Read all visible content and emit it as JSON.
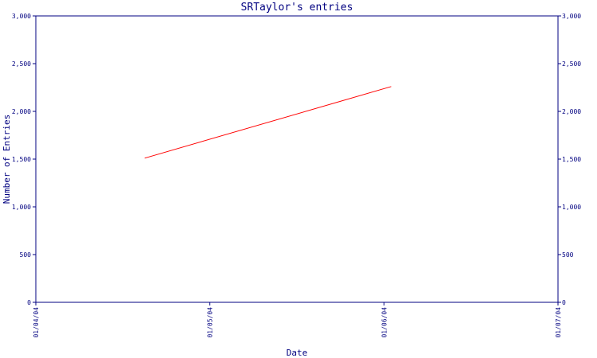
{
  "chart_data": {
    "type": "line",
    "title": "SRTaylor's entries",
    "xlabel": "Date",
    "ylabel": "Number of Entries",
    "x_ticks": [
      "01/04/04",
      "01/05/04",
      "01/06/04",
      "01/07/04"
    ],
    "xlim": [
      "2004-01-04",
      "2004-01-07"
    ],
    "ylim": [
      0,
      3000
    ],
    "y_ticks": [
      "0",
      "500",
      "1,000",
      "1,500",
      "2,000",
      "2,500",
      "3,000"
    ],
    "y_tick_values": [
      0,
      500,
      1000,
      1500,
      2000,
      2500,
      3000
    ],
    "grid": false,
    "series": [
      {
        "color": "#ff0000",
        "points": [
          {
            "x": "2004-01-04 15:00",
            "y": 1510
          },
          {
            "x": "2004-01-06 01:00",
            "y": 2260
          }
        ]
      }
    ],
    "axis_color": "#000080"
  }
}
